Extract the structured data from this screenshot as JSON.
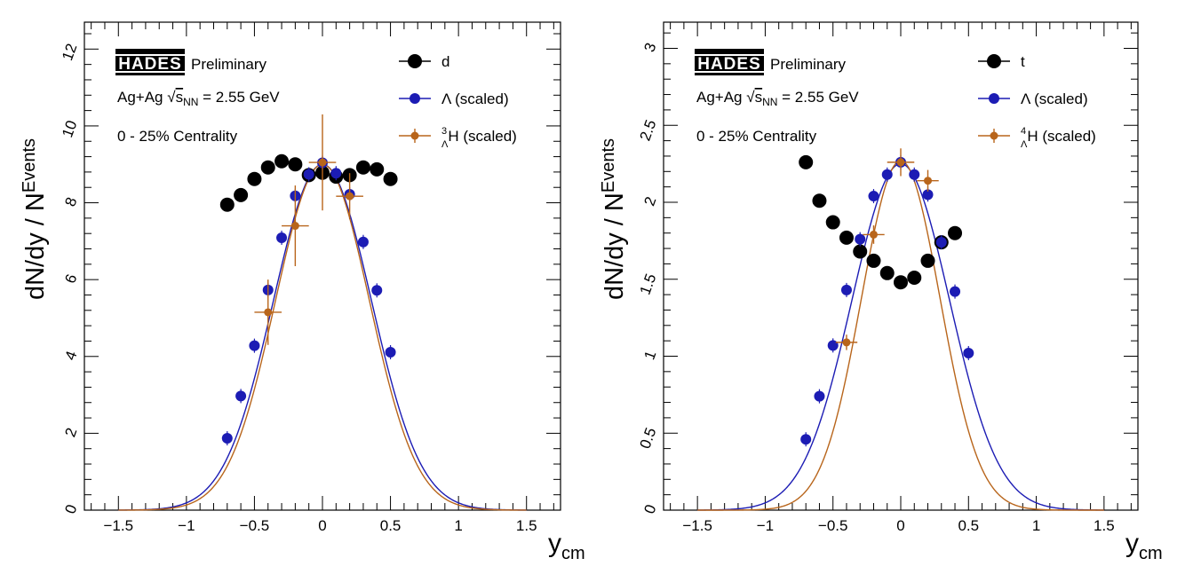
{
  "chart_data": [
    {
      "type": "scatter",
      "id": "left",
      "info": {
        "experiment": "HADES",
        "status": "Preliminary",
        "system": "Ag+Ag",
        "energy_prefix": "s",
        "energy_sub": "NN",
        "energy_value": "= 2.55 GeV",
        "centrality": "0 - 25% Centrality"
      },
      "xlabel_main": "y",
      "xlabel_sub": "cm",
      "ylabel_main": "dN/dy / N",
      "ylabel_sub": "Events",
      "xlim": [
        -1.75,
        1.75
      ],
      "ylim": [
        0,
        12.7
      ],
      "xticks": [
        -1.5,
        -1,
        -0.5,
        0,
        0.5,
        1,
        1.5
      ],
      "xtick_labels": [
        "−1.5",
        "−1",
        "−0.5",
        "0",
        "0.5",
        "1",
        "1.5"
      ],
      "yticks": [
        0,
        2,
        4,
        6,
        8,
        10,
        12
      ],
      "ytick_labels": [
        "0",
        "2",
        "4",
        "6",
        "8",
        "10",
        "12"
      ],
      "series": [
        {
          "name": "d",
          "label": "d",
          "color": "#000000",
          "marker": "big",
          "x": [
            -0.7,
            -0.6,
            -0.5,
            -0.4,
            -0.3,
            -0.2,
            -0.1,
            0.0,
            0.1,
            0.2,
            0.3,
            0.4,
            0.5
          ],
          "y": [
            7.95,
            8.2,
            8.62,
            8.92,
            9.08,
            9.0,
            8.72,
            8.78,
            8.68,
            8.72,
            8.92,
            8.87,
            8.62
          ]
        },
        {
          "name": "lambda",
          "label": "Λ (scaled)",
          "color": "#1c1cb4",
          "marker": "mid",
          "x": [
            -0.7,
            -0.6,
            -0.5,
            -0.4,
            -0.3,
            -0.2,
            -0.1,
            0.0,
            0.1,
            0.2,
            0.3,
            0.4,
            0.5
          ],
          "y": [
            1.87,
            2.97,
            4.28,
            5.73,
            7.09,
            8.18,
            8.74,
            9.04,
            8.77,
            8.22,
            6.98,
            5.72,
            4.11
          ],
          "fit": {
            "amp": 9.0,
            "mean": 0.0,
            "sigma": 0.36
          }
        },
        {
          "name": "hypertriton",
          "label_sup": "3",
          "label_sub": "Λ",
          "label_rest": "H (scaled)",
          "color": "#b8651b",
          "marker": "small",
          "x": [
            -0.4,
            -0.2,
            0.0,
            0.2
          ],
          "y": [
            5.15,
            7.4,
            9.05,
            8.17
          ],
          "xerr": [
            0.1,
            0.1,
            0.1,
            0.1
          ],
          "yerr": [
            0.85,
            1.05,
            1.25,
            0.6
          ],
          "fit": {
            "amp": 9.0,
            "mean": 0.0,
            "sigma": 0.345
          }
        }
      ]
    },
    {
      "type": "scatter",
      "id": "right",
      "info": {
        "experiment": "HADES",
        "status": "Preliminary",
        "system": "Ag+Ag",
        "energy_prefix": "s",
        "energy_sub": "NN",
        "energy_value": "= 2.55 GeV",
        "centrality": "0 - 25% Centrality"
      },
      "xlabel_main": "y",
      "xlabel_sub": "cm",
      "ylabel_main": "dN/dy / N",
      "ylabel_sub": "Events",
      "xlim": [
        -1.75,
        1.75
      ],
      "ylim": [
        0,
        3.17
      ],
      "xticks": [
        -1.5,
        -1,
        -0.5,
        0,
        0.5,
        1,
        1.5
      ],
      "xtick_labels": [
        "−1.5",
        "−1",
        "−0.5",
        "0",
        "0.5",
        "1",
        "1.5"
      ],
      "yticks": [
        0,
        0.5,
        1,
        1.5,
        2,
        2.5,
        3
      ],
      "ytick_labels": [
        "0",
        "0.5",
        "1",
        "1.5",
        "2",
        "2.5",
        "3"
      ],
      "series": [
        {
          "name": "t",
          "label": "t",
          "color": "#000000",
          "marker": "big",
          "x": [
            -0.7,
            -0.6,
            -0.5,
            -0.4,
            -0.3,
            -0.2,
            -0.1,
            0.0,
            0.1,
            0.2,
            0.3,
            0.4
          ],
          "y": [
            2.26,
            2.01,
            1.87,
            1.77,
            1.68,
            1.62,
            1.54,
            1.48,
            1.51,
            1.62,
            1.74,
            1.8
          ]
        },
        {
          "name": "lambda",
          "label": "Λ (scaled)",
          "color": "#1c1cb4",
          "marker": "mid",
          "x": [
            -0.7,
            -0.6,
            -0.5,
            -0.4,
            -0.3,
            -0.2,
            -0.1,
            0.0,
            0.1,
            0.2,
            0.3,
            0.4,
            0.5
          ],
          "y": [
            0.46,
            0.74,
            1.07,
            1.43,
            1.76,
            2.04,
            2.18,
            2.26,
            2.18,
            2.05,
            1.74,
            1.42,
            1.02
          ],
          "fit": {
            "amp": 2.25,
            "mean": 0.0,
            "sigma": 0.36
          }
        },
        {
          "name": "hypertriton4",
          "label_sup": "4",
          "label_sub": "Λ",
          "label_rest": "H (scaled)",
          "color": "#b8651b",
          "marker": "small",
          "x": [
            -0.4,
            -0.2,
            0.0,
            0.2
          ],
          "y": [
            1.09,
            1.79,
            2.26,
            2.14
          ],
          "xerr": [
            0.08,
            0.08,
            0.1,
            0.08
          ],
          "yerr": [
            0.05,
            0.06,
            0.09,
            0.07
          ],
          "fit": {
            "amp": 2.27,
            "mean": 0.0,
            "sigma": 0.29
          }
        }
      ]
    }
  ]
}
